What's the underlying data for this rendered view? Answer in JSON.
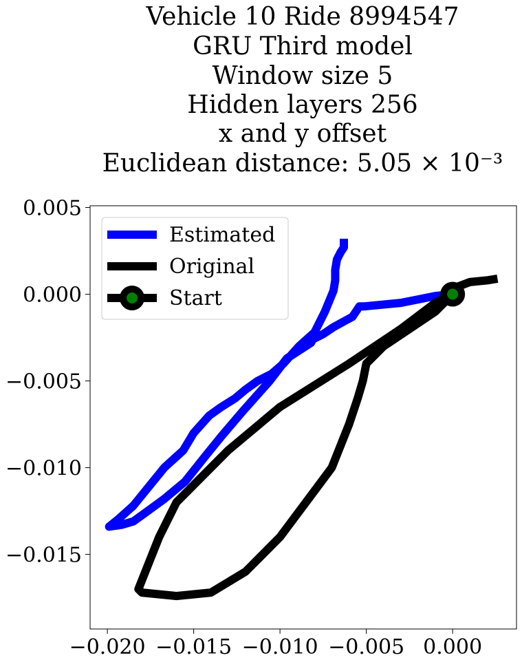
{
  "chart_data": {
    "type": "line",
    "title_lines": [
      "Vehicle 10 Ride 8994547",
      "GRU Third model",
      "Window size 5",
      "Hidden layers 256",
      "x and y offset",
      "Euclidean distance: 5.05 × 10⁻³"
    ],
    "xlabel": "",
    "ylabel": "",
    "xlim": [
      -0.021,
      0.0037
    ],
    "ylim": [
      -0.0193,
      0.0051
    ],
    "xticks": [
      -0.02,
      -0.015,
      -0.01,
      -0.005,
      0.0
    ],
    "xtick_labels": [
      "−0.020",
      "−0.015",
      "−0.010",
      "−0.005",
      "0.000"
    ],
    "yticks": [
      0.005,
      0.0,
      -0.005,
      -0.01,
      -0.015
    ],
    "ytick_labels": [
      "0.005",
      "0.000",
      "−0.005",
      "−0.010",
      "−0.015"
    ],
    "grid": false,
    "legend_position": "upper-left",
    "series": [
      {
        "name": "Estimated",
        "color": "#0000ff",
        "x": [
          -0.0063,
          -0.0063,
          -0.0065,
          -0.0067,
          -0.0068,
          -0.0068,
          -0.0069,
          -0.0074,
          -0.008,
          -0.0089,
          -0.0098,
          -0.0105,
          -0.0113,
          -0.012,
          -0.0126,
          -0.0134,
          -0.0141,
          -0.015,
          -0.0156,
          -0.0167,
          -0.0185,
          -0.0194,
          -0.0199,
          -0.0199,
          -0.0192,
          -0.0185,
          -0.0178,
          -0.0167,
          -0.0155,
          -0.0143,
          -0.0134,
          -0.0122,
          -0.0106,
          -0.0096,
          -0.0082,
          -0.0081,
          -0.0075,
          -0.0069,
          -0.0058,
          -0.0054,
          -0.0051,
          -0.003,
          -0.001,
          0.0
        ],
        "y": [
          0.0032,
          0.0027,
          0.0024,
          0.002,
          0.0014,
          0.0008,
          0.0002,
          -0.001,
          -0.0022,
          -0.003,
          -0.004,
          -0.0046,
          -0.005,
          -0.0055,
          -0.006,
          -0.0065,
          -0.007,
          -0.008,
          -0.009,
          -0.01,
          -0.0122,
          -0.013,
          -0.0134,
          -0.0134,
          -0.0133,
          -0.0131,
          -0.0126,
          -0.0118,
          -0.0108,
          -0.0093,
          -0.0082,
          -0.0068,
          -0.005,
          -0.0037,
          -0.0028,
          -0.0026,
          -0.0023,
          -0.0019,
          -0.0013,
          -0.0007,
          -0.0007,
          -0.0005,
          -0.0001,
          0.0
        ]
      },
      {
        "name": "Original",
        "color": "#000000",
        "x": [
          0.0026,
          0.002,
          0.001,
          0.0002,
          0.0,
          -0.001,
          -0.0025,
          -0.004,
          -0.005,
          -0.0052,
          -0.0055,
          -0.006,
          -0.007,
          -0.0085,
          -0.01,
          -0.012,
          -0.014,
          -0.016,
          -0.018,
          -0.0182,
          -0.0178,
          -0.017,
          -0.016,
          -0.013,
          -0.01,
          -0.006,
          -0.003,
          -0.001,
          0.0
        ],
        "y": [
          0.0009,
          0.0008,
          0.0007,
          0.0004,
          0.0,
          -0.001,
          -0.002,
          -0.003,
          -0.004,
          -0.005,
          -0.006,
          -0.0075,
          -0.01,
          -0.012,
          -0.014,
          -0.016,
          -0.0172,
          -0.0174,
          -0.0172,
          -0.017,
          -0.016,
          -0.014,
          -0.012,
          -0.009,
          -0.0065,
          -0.004,
          -0.002,
          -0.0005,
          0.0
        ]
      },
      {
        "name": "Start",
        "color": "#000000",
        "marker_color": "#008000",
        "x": [
          0.0
        ],
        "y": [
          0.0
        ]
      }
    ]
  }
}
